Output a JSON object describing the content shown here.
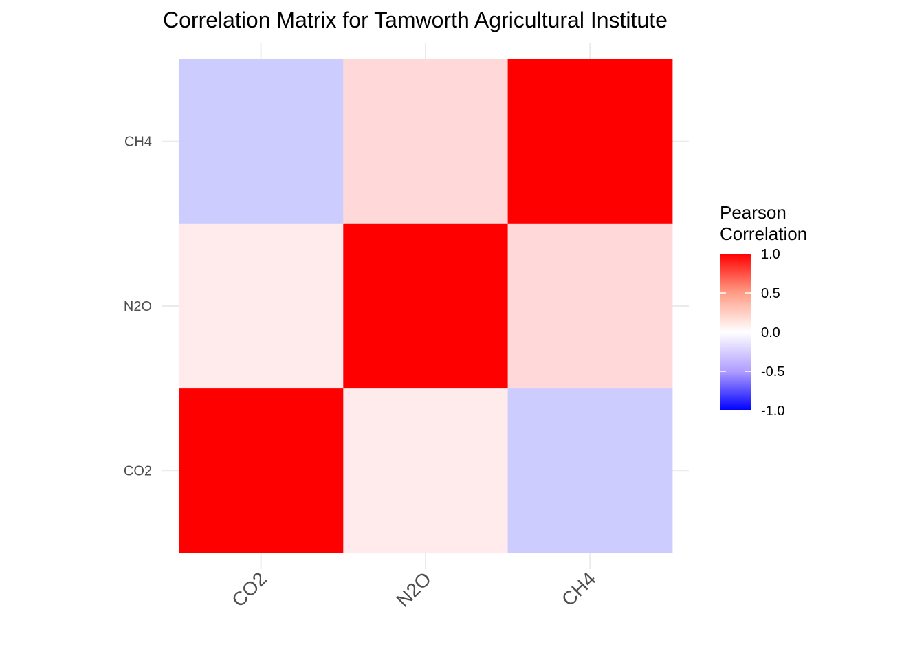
{
  "chart_data": {
    "type": "heatmap",
    "title": "Correlation Matrix for Tamworth Agricultural Institute",
    "x_categories": [
      "CO2",
      "N2O",
      "CH4"
    ],
    "y_categories": [
      "CO2",
      "N2O",
      "CH4"
    ],
    "values": [
      [
        1.0,
        0.08,
        -0.2
      ],
      [
        0.08,
        1.0,
        0.15
      ],
      [
        -0.2,
        0.15,
        1.0
      ]
    ],
    "legend": {
      "title_lines": [
        "Pearson",
        "Correlation"
      ],
      "ticks": [
        1.0,
        0.5,
        0.0,
        -0.5,
        -1.0
      ],
      "tick_labels": [
        "1.0",
        "0.5",
        "0.0",
        "-0.5",
        "-1.0"
      ],
      "range": [
        -1,
        1
      ],
      "low_color": "#0000ff",
      "mid_color": "#ffffff",
      "high_color": "#ff0000",
      "placement": "right"
    },
    "grid": true,
    "x_tick_rotation_deg": 45
  }
}
